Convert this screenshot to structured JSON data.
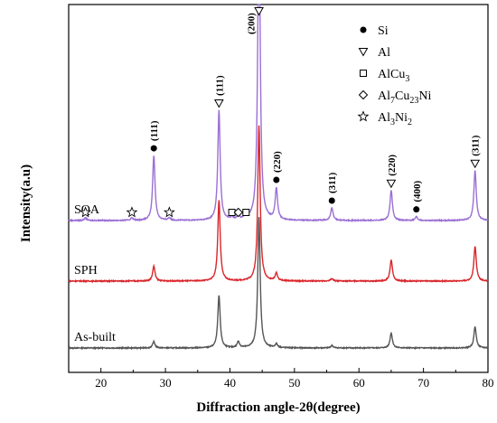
{
  "chart_data": {
    "type": "line",
    "xlabel": "Diffraction angle-2θ(degree)",
    "ylabel": "Intensity(a.u)",
    "xlim": [
      15,
      80
    ],
    "x_ticks": [
      "20",
      "30",
      "40",
      "50",
      "60",
      "70",
      "80"
    ],
    "grid": false,
    "legend_position": "top-right",
    "legend": [
      {
        "marker": "filled-circle",
        "label": "Si"
      },
      {
        "marker": "down-triangle",
        "label": "Al"
      },
      {
        "marker": "square",
        "label": "AlCu",
        "sub": "3"
      },
      {
        "marker": "diamond",
        "label": "Al",
        "sub": "7",
        "mid": "Cu",
        "sub2": "23",
        "tail": "Ni"
      },
      {
        "marker": "star",
        "label": "Al",
        "sub": "3",
        "mid": "Ni",
        "sub2": "2"
      }
    ],
    "series": [
      {
        "name": "As-built",
        "color": "#555555",
        "baseline": 0.0,
        "peaks": [
          [
            28.2,
            0.05
          ],
          [
            38.3,
            0.42
          ],
          [
            41.3,
            0.05
          ],
          [
            44.5,
            1.05
          ],
          [
            47.2,
            0.03
          ],
          [
            55.8,
            0.02
          ],
          [
            65.0,
            0.12
          ],
          [
            78.0,
            0.17
          ]
        ]
      },
      {
        "name": "SPH",
        "color": "#d9262b",
        "baseline": 1.0,
        "peaks": [
          [
            28.2,
            0.12
          ],
          [
            38.3,
            0.65
          ],
          [
            44.5,
            1.25
          ],
          [
            47.2,
            0.06
          ],
          [
            55.8,
            0.02
          ],
          [
            65.0,
            0.17
          ],
          [
            78.0,
            0.28
          ]
        ]
      },
      {
        "name": "SQA",
        "color": "#9b6fd4",
        "baseline": 2.0,
        "peaks": [
          [
            17.6,
            0.02
          ],
          [
            24.8,
            0.02
          ],
          [
            28.2,
            0.52
          ],
          [
            30.6,
            0.02
          ],
          [
            38.3,
            0.88
          ],
          [
            40.3,
            0.02
          ],
          [
            41.3,
            0.03
          ],
          [
            42.5,
            0.04
          ],
          [
            44.5,
            2.6
          ],
          [
            47.2,
            0.25
          ],
          [
            55.8,
            0.1
          ],
          [
            65.0,
            0.24
          ],
          [
            68.9,
            0.03
          ],
          [
            78.0,
            0.4
          ]
        ]
      }
    ],
    "annotations": [
      {
        "x": 28.2,
        "marker": "filled-circle",
        "label": "(111)"
      },
      {
        "x": 38.3,
        "marker": "down-triangle",
        "label": "(111)"
      },
      {
        "x": 44.5,
        "marker": "down-triangle",
        "label": "(200)"
      },
      {
        "x": 47.2,
        "marker": "filled-circle",
        "label": "(220)"
      },
      {
        "x": 55.8,
        "marker": "filled-circle",
        "label": "(311)"
      },
      {
        "x": 65.0,
        "marker": "down-triangle",
        "label": "(220)"
      },
      {
        "x": 68.9,
        "marker": "filled-circle",
        "label": "(400)"
      },
      {
        "x": 78.0,
        "marker": "down-triangle",
        "label": "(311)"
      },
      {
        "x": 17.6,
        "marker": "star",
        "label": ""
      },
      {
        "x": 24.8,
        "marker": "star",
        "label": ""
      },
      {
        "x": 30.6,
        "marker": "star",
        "label": ""
      },
      {
        "x": 40.3,
        "marker": "square",
        "label": ""
      },
      {
        "x": 41.3,
        "marker": "diamond",
        "label": ""
      },
      {
        "x": 42.5,
        "marker": "square",
        "label": ""
      }
    ]
  }
}
